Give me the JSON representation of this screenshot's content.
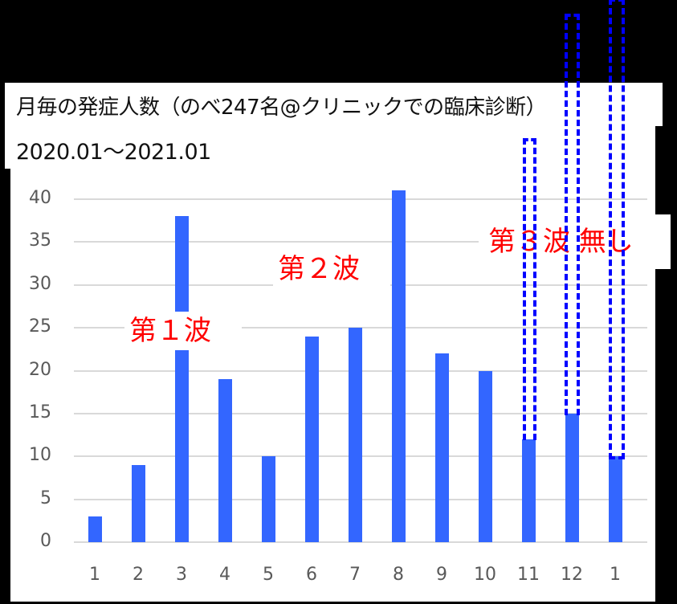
{
  "chart_data": {
    "type": "bar",
    "title": "月毎の発症人数（のべ247名@クリニックでの臨床診断）",
    "subtitle": "2020.01～2021.01",
    "xlabel": "",
    "ylabel": "",
    "categories": [
      "1",
      "2",
      "3",
      "4",
      "5",
      "6",
      "7",
      "8",
      "9",
      "10",
      "11",
      "12",
      "1"
    ],
    "values": [
      3,
      9,
      38,
      19,
      10,
      24,
      25,
      41,
      22,
      20,
      12,
      15,
      10
    ],
    "ylim": [
      0,
      40
    ],
    "yticks": [
      "0",
      "5",
      "10",
      "15",
      "20",
      "25",
      "30",
      "35",
      "40"
    ],
    "grid": true,
    "legend": null,
    "bar_color": "#3366ff",
    "annotations": [
      {
        "text": "第１波",
        "near_category_index": 2,
        "color": "#ff0000"
      },
      {
        "text": "第２波",
        "near_category_index": 6,
        "color": "#ff0000"
      },
      {
        "text": "第３波 無し",
        "near_category_index": 11,
        "color": "#ff0000"
      },
      {
        "type": "dashed-outline",
        "category_index": 10,
        "color": "#0000ff"
      },
      {
        "type": "dashed-outline",
        "category_index": 11,
        "color": "#0000ff"
      },
      {
        "type": "dashed-outline",
        "category_index": 12,
        "color": "#0000ff"
      }
    ]
  },
  "labels": {
    "wave1": "第１波",
    "wave2": "第２波",
    "wave3": "第３波 無し"
  }
}
